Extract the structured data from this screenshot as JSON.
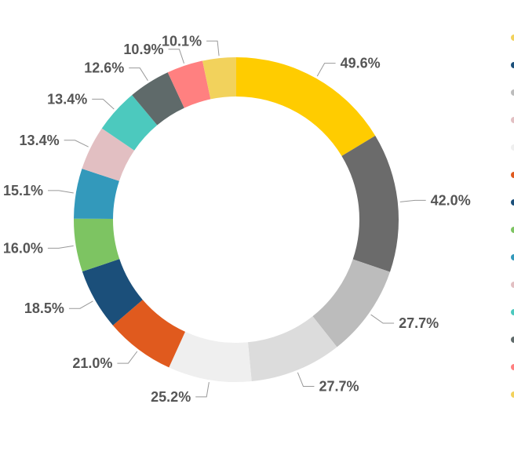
{
  "chart_data": {
    "type": "pie",
    "donut": true,
    "legend": "right (cut off)",
    "slices": [
      {
        "label": "49.6%",
        "value": 49.6,
        "color": "#FFCC00"
      },
      {
        "label": "42.0%",
        "value": 42.0,
        "color": "#6B6B6B"
      },
      {
        "label": "27.7%",
        "value": 27.7,
        "color": "#BCBCBC"
      },
      {
        "label": "27.7%",
        "value": 27.7,
        "color": "#DCDCDC"
      },
      {
        "label": "25.2%",
        "value": 25.2,
        "color": "#EFEFEF"
      },
      {
        "label": "21.0%",
        "value": 21.0,
        "color": "#E05A1E"
      },
      {
        "label": "18.5%",
        "value": 18.5,
        "color": "#1B4F7A"
      },
      {
        "label": "16.0%",
        "value": 16.0,
        "color": "#7DC462"
      },
      {
        "label": "15.1%",
        "value": 15.1,
        "color": "#3399BB"
      },
      {
        "label": "13.4%",
        "value": 13.4,
        "color": "#E2BFC2"
      },
      {
        "label": "13.4%",
        "value": 13.4,
        "color": "#4CC9BE"
      },
      {
        "label": "12.6%",
        "value": 12.6,
        "color": "#5F6A6A"
      },
      {
        "label": "10.9%",
        "value": 10.9,
        "color": "#FF8080"
      },
      {
        "label": "10.1%",
        "value": 10.1,
        "color": "#F2D25C"
      }
    ],
    "legend_marker_colors": [
      "#F2D25C",
      "#1B4F7A",
      "#BCBCBC",
      "#E2BFC2",
      "#EFEFEF",
      "#E05A1E",
      "#1B4F7A",
      "#7DC462",
      "#3399BB",
      "#E2BFC2",
      "#4CC9BE",
      "#5F6A6A",
      "#FF8080",
      "#F2D25C"
    ]
  }
}
